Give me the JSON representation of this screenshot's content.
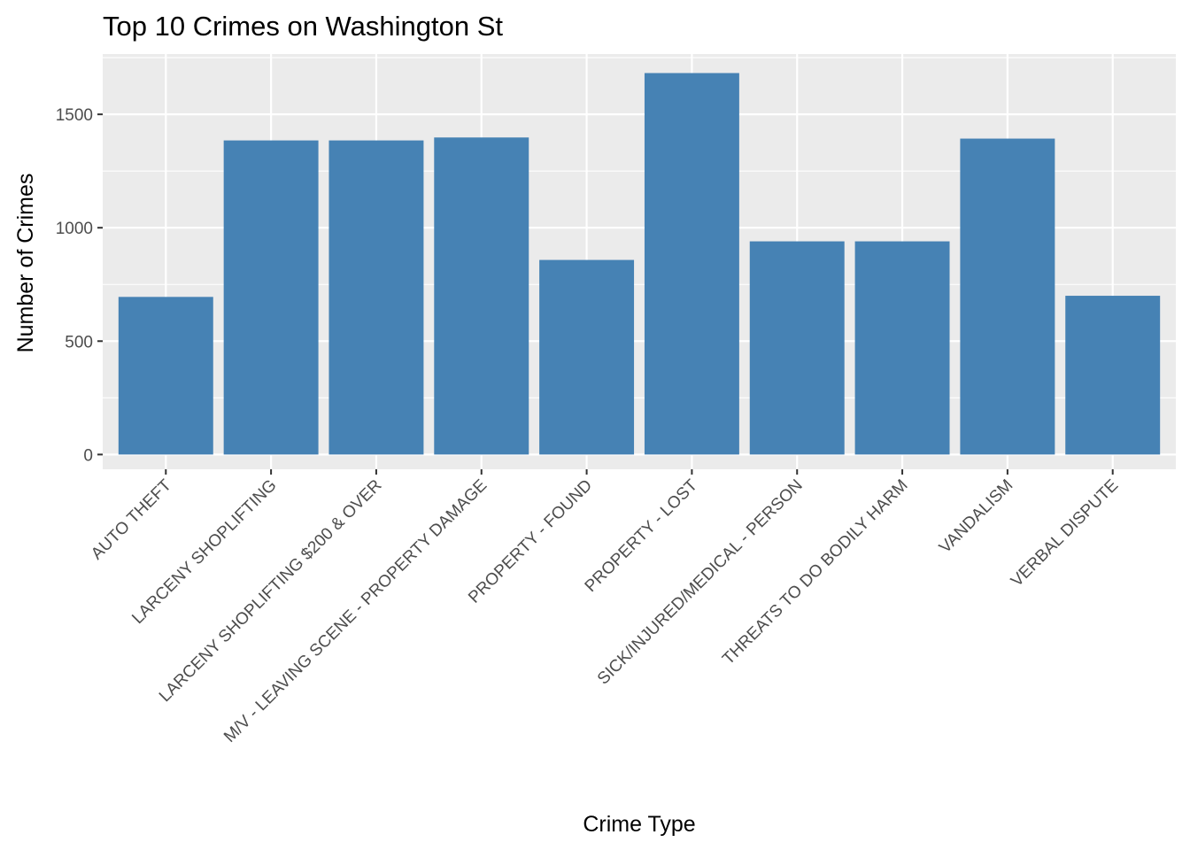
{
  "chart_data": {
    "type": "bar",
    "title": "Top 10 Crimes on Washington St",
    "xlabel": "Crime Type",
    "ylabel": "Number of Crimes",
    "categories": [
      "AUTO THEFT",
      "LARCENY SHOPLIFTING",
      "LARCENY SHOPLIFTING $200 & OVER",
      "M/V - LEAVING SCENE - PROPERTY DAMAGE",
      "PROPERTY - FOUND",
      "PROPERTY - LOST",
      "SICK/INJURED/MEDICAL - PERSON",
      "THREATS TO DO BODILY HARM",
      "VANDALISM",
      "VERBAL DISPUTE"
    ],
    "values": [
      695,
      1385,
      1385,
      1398,
      858,
      1682,
      940,
      940,
      1393,
      700
    ],
    "ylim": [
      -65,
      1766
    ],
    "yticks": [
      0,
      500,
      1000,
      1500
    ],
    "ytick_labels": [
      "0",
      "500",
      "1000",
      "1500"
    ],
    "grid": true,
    "legend": "none",
    "colors": {
      "bar": "#4682b4",
      "panel": "#ebebeb",
      "grid_major": "#ffffff",
      "tick_text": "#4d4d4d",
      "axis_tick": "#333333"
    }
  }
}
